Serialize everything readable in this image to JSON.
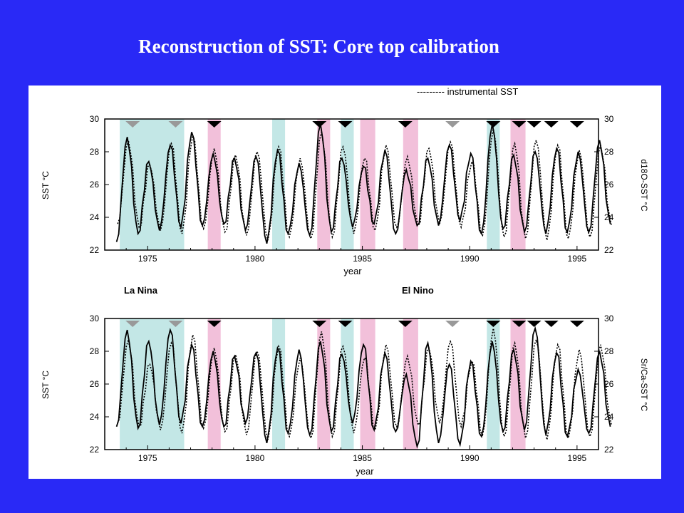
{
  "slide": {
    "title": "Reconstruction of SST: Core top calibration"
  },
  "chart_data": [
    {
      "type": "line",
      "xlabel": "year",
      "ylabel": "SST °C",
      "ylabel_right": "d18O-SST °C",
      "legend": "--------- instrumental SST",
      "xlim": [
        1973,
        1996
      ],
      "ylim": [
        22,
        30
      ],
      "xticks": [
        1975,
        1980,
        1985,
        1990,
        1995
      ],
      "yticks": [
        22,
        24,
        26,
        28,
        30
      ],
      "series": [
        {
          "name": "d18O-SST °C",
          "style": "solid",
          "color": "#000000",
          "peaks": [
            28.9,
            27.4,
            28.4,
            29.2,
            27.9,
            27.6,
            27.7,
            28.1,
            27.3,
            29.7,
            27.6,
            27.1,
            28.1,
            26.9,
            27.6,
            28.4,
            27.9,
            29.7,
            27.8,
            28.0,
            28.2,
            28.0,
            28.7
          ],
          "troughs": [
            22.5,
            23.0,
            23.2,
            23.4,
            23.5,
            23.6,
            23.2,
            22.4,
            23.0,
            22.9,
            23.1,
            23.4,
            23.6,
            23.0,
            23.5,
            23.5,
            23.8,
            23.0,
            23.3,
            23.1,
            23.0,
            23.1,
            23.1,
            23.6
          ]
        },
        {
          "name": "instrumental SST",
          "style": "dotted",
          "color": "#000000",
          "peaks": [
            28.7,
            27.2,
            28.5,
            29.0,
            28.2,
            27.8,
            28.0,
            28.3,
            27.6,
            29.2,
            28.3,
            27.6,
            28.4,
            27.7,
            28.2,
            28.6,
            27.4,
            29.4,
            28.5,
            28.7,
            28.4,
            28.1,
            28.4
          ],
          "troughs": [
            23.6,
            23.4,
            23.2,
            23.0,
            23.3,
            23.1,
            22.9,
            22.6,
            22.8,
            22.7,
            22.8,
            23.0,
            23.2,
            23.4,
            23.5,
            23.6,
            23.4,
            22.9,
            22.8,
            22.7,
            22.6,
            22.7,
            22.8,
            23.5
          ]
        }
      ],
      "la_nina_bands": [
        [
          1973.7,
          1976.7
        ],
        [
          1980.8,
          1981.4
        ],
        [
          1984.0,
          1984.6
        ],
        [
          1990.8,
          1991.4
        ]
      ],
      "el_nino_bands": [
        [
          1977.8,
          1978.4
        ],
        [
          1982.9,
          1983.5
        ],
        [
          1984.9,
          1985.6
        ],
        [
          1986.9,
          1987.6
        ],
        [
          1991.9,
          1992.6
        ]
      ],
      "markers": [
        {
          "year": 1974.3,
          "color": "#999999"
        },
        {
          "year": 1976.3,
          "color": "#999999"
        },
        {
          "year": 1978.1,
          "color": "#000000"
        },
        {
          "year": 1983.0,
          "color": "#000000"
        },
        {
          "year": 1984.2,
          "color": "#000000"
        },
        {
          "year": 1987.0,
          "color": "#000000"
        },
        {
          "year": 1989.2,
          "color": "#999999"
        },
        {
          "year": 1991.1,
          "color": "#000000"
        },
        {
          "year": 1992.3,
          "color": "#000000"
        },
        {
          "year": 1993.0,
          "color": "#000000"
        },
        {
          "year": 1993.8,
          "color": "#000000"
        },
        {
          "year": 1995.0,
          "color": "#000000"
        }
      ],
      "band_labels": {
        "la_nina": "La Nina",
        "el_nino": "El Nino"
      }
    },
    {
      "type": "line",
      "xlabel": "year",
      "ylabel": "SST °C",
      "ylabel_right": "Sr/Ca-SST °C",
      "xlim": [
        1973,
        1996
      ],
      "ylim": [
        22,
        30
      ],
      "xticks": [
        1975,
        1980,
        1985,
        1990,
        1995
      ],
      "yticks": [
        22,
        24,
        26,
        28,
        30
      ],
      "series": [
        {
          "name": "Sr/Ca-SST °C",
          "style": "solid",
          "color": "#000000",
          "peaks": [
            29.3,
            28.6,
            29.3,
            28.4,
            28.0,
            27.7,
            27.9,
            28.2,
            28.1,
            28.6,
            27.8,
            28.4,
            27.9,
            26.6,
            28.5,
            27.2,
            27.4,
            28.6,
            28.1,
            29.4,
            27.9,
            26.9,
            28.0
          ],
          "troughs": [
            23.4,
            23.3,
            23.5,
            23.6,
            23.4,
            23.4,
            23.6,
            22.4,
            23.0,
            22.9,
            23.1,
            23.6,
            23.2,
            23.1,
            22.2,
            22.4,
            22.3,
            22.8,
            23.1,
            23.2,
            22.9,
            22.8,
            23.0,
            23.4
          ]
        },
        {
          "name": "instrumental SST",
          "style": "dotted",
          "color": "#000000",
          "peaks": [
            28.7,
            27.2,
            28.5,
            29.0,
            28.2,
            27.8,
            28.0,
            28.3,
            27.6,
            29.2,
            28.3,
            27.6,
            28.4,
            27.7,
            28.2,
            28.6,
            27.4,
            29.4,
            28.5,
            28.7,
            28.4,
            28.1,
            28.4
          ],
          "troughs": [
            23.6,
            23.4,
            23.2,
            23.0,
            23.3,
            23.1,
            22.9,
            22.6,
            22.8,
            22.7,
            22.8,
            23.0,
            23.2,
            23.4,
            23.5,
            23.6,
            23.4,
            22.9,
            22.8,
            22.7,
            22.6,
            22.7,
            22.8,
            23.5
          ]
        }
      ]
    }
  ]
}
